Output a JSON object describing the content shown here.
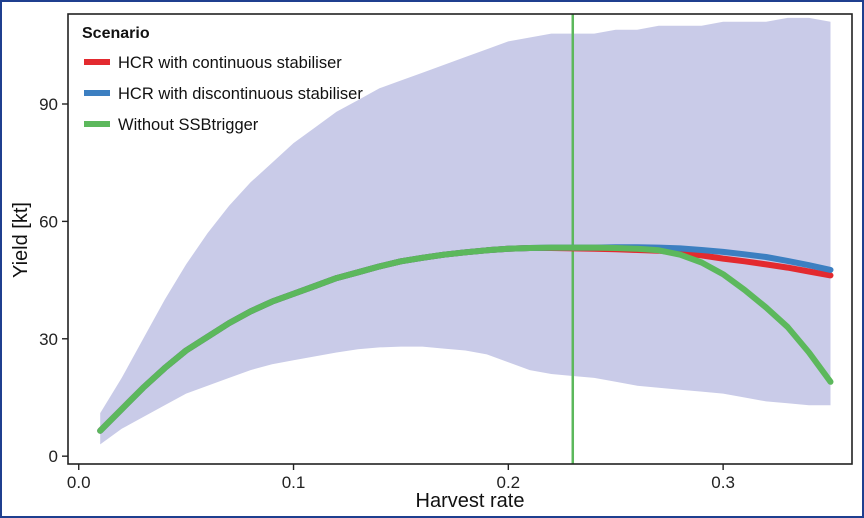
{
  "chart_data": {
    "type": "line",
    "xlabel": "Harvest rate",
    "ylabel": "Yield [kt]",
    "xlim": [
      -0.005,
      0.36
    ],
    "ylim": [
      -2,
      113
    ],
    "x_ticks": [
      0.0,
      0.1,
      0.2,
      0.3
    ],
    "x_tick_labels": [
      "0.0",
      "0.1",
      "0.2",
      "0.3"
    ],
    "y_ticks": [
      0,
      30,
      60,
      90
    ],
    "y_tick_labels": [
      "0",
      "30",
      "60",
      "90"
    ],
    "grid": false,
    "legend": {
      "title": "Scenario",
      "placement": "top-left"
    },
    "vline": {
      "x": 0.23,
      "color": "#5cb85c"
    },
    "band": {
      "color": "#c9cbe8",
      "x": [
        0.01,
        0.02,
        0.03,
        0.04,
        0.05,
        0.06,
        0.07,
        0.08,
        0.09,
        0.1,
        0.11,
        0.12,
        0.13,
        0.14,
        0.15,
        0.16,
        0.17,
        0.18,
        0.19,
        0.2,
        0.21,
        0.22,
        0.23,
        0.24,
        0.25,
        0.26,
        0.27,
        0.28,
        0.29,
        0.3,
        0.31,
        0.32,
        0.33,
        0.34,
        0.35
      ],
      "upper": [
        11,
        20,
        30,
        40,
        49,
        57,
        64,
        70,
        75,
        80,
        84,
        88,
        91,
        94,
        96,
        98,
        100,
        102,
        104,
        106,
        107,
        108,
        108,
        108,
        109,
        109,
        110,
        110,
        110,
        111,
        111,
        111,
        112,
        112,
        111
      ],
      "lower": [
        3,
        7,
        10,
        13,
        16,
        18,
        20,
        22,
        23.5,
        24.5,
        25.5,
        26.5,
        27.3,
        27.8,
        28,
        28,
        27.5,
        27,
        26,
        24,
        22,
        21,
        20.5,
        20,
        19,
        18,
        17.5,
        17,
        16.5,
        16,
        15,
        14,
        13.5,
        13,
        13
      ]
    },
    "x": [
      0.01,
      0.02,
      0.03,
      0.04,
      0.05,
      0.06,
      0.07,
      0.08,
      0.09,
      0.1,
      0.11,
      0.12,
      0.13,
      0.14,
      0.15,
      0.16,
      0.17,
      0.18,
      0.19,
      0.2,
      0.21,
      0.22,
      0.23,
      0.24,
      0.25,
      0.26,
      0.27,
      0.28,
      0.29,
      0.3,
      0.31,
      0.32,
      0.33,
      0.34,
      0.35
    ],
    "series": [
      {
        "name": "HCR with continuous stabiliser",
        "color": "#e32a2f",
        "values": [
          6.5,
          12,
          17.5,
          22.5,
          27,
          30.5,
          34,
          37,
          39.5,
          41.5,
          43.5,
          45.5,
          47,
          48.5,
          49.8,
          50.7,
          51.5,
          52.1,
          52.6,
          53,
          53.2,
          53.2,
          53.1,
          53,
          52.9,
          52.7,
          52.5,
          52,
          51.3,
          50.5,
          49.8,
          49,
          48.2,
          47.2,
          46.2
        ]
      },
      {
        "name": "HCR with discontinuous stabiliser",
        "color": "#3c7fc1",
        "values": [
          6.5,
          12,
          17.5,
          22.5,
          27,
          30.5,
          34,
          37,
          39.5,
          41.5,
          43.5,
          45.5,
          47,
          48.5,
          49.8,
          50.7,
          51.5,
          52.1,
          52.6,
          53,
          53.2,
          53.3,
          53.3,
          53.3,
          53.4,
          53.4,
          53.3,
          53.1,
          52.7,
          52.2,
          51.6,
          50.9,
          49.9,
          48.8,
          47.6
        ]
      },
      {
        "name": "Without SSBtrigger",
        "color": "#5cb85c",
        "values": [
          6.5,
          12,
          17.5,
          22.5,
          27,
          30.5,
          34,
          37,
          39.5,
          41.5,
          43.5,
          45.5,
          47,
          48.5,
          49.8,
          50.7,
          51.5,
          52.1,
          52.6,
          53,
          53.2,
          53.3,
          53.3,
          53.3,
          53.2,
          53,
          52.6,
          51.5,
          49.5,
          46.5,
          42.5,
          38,
          33,
          26.5,
          19
        ]
      }
    ]
  }
}
